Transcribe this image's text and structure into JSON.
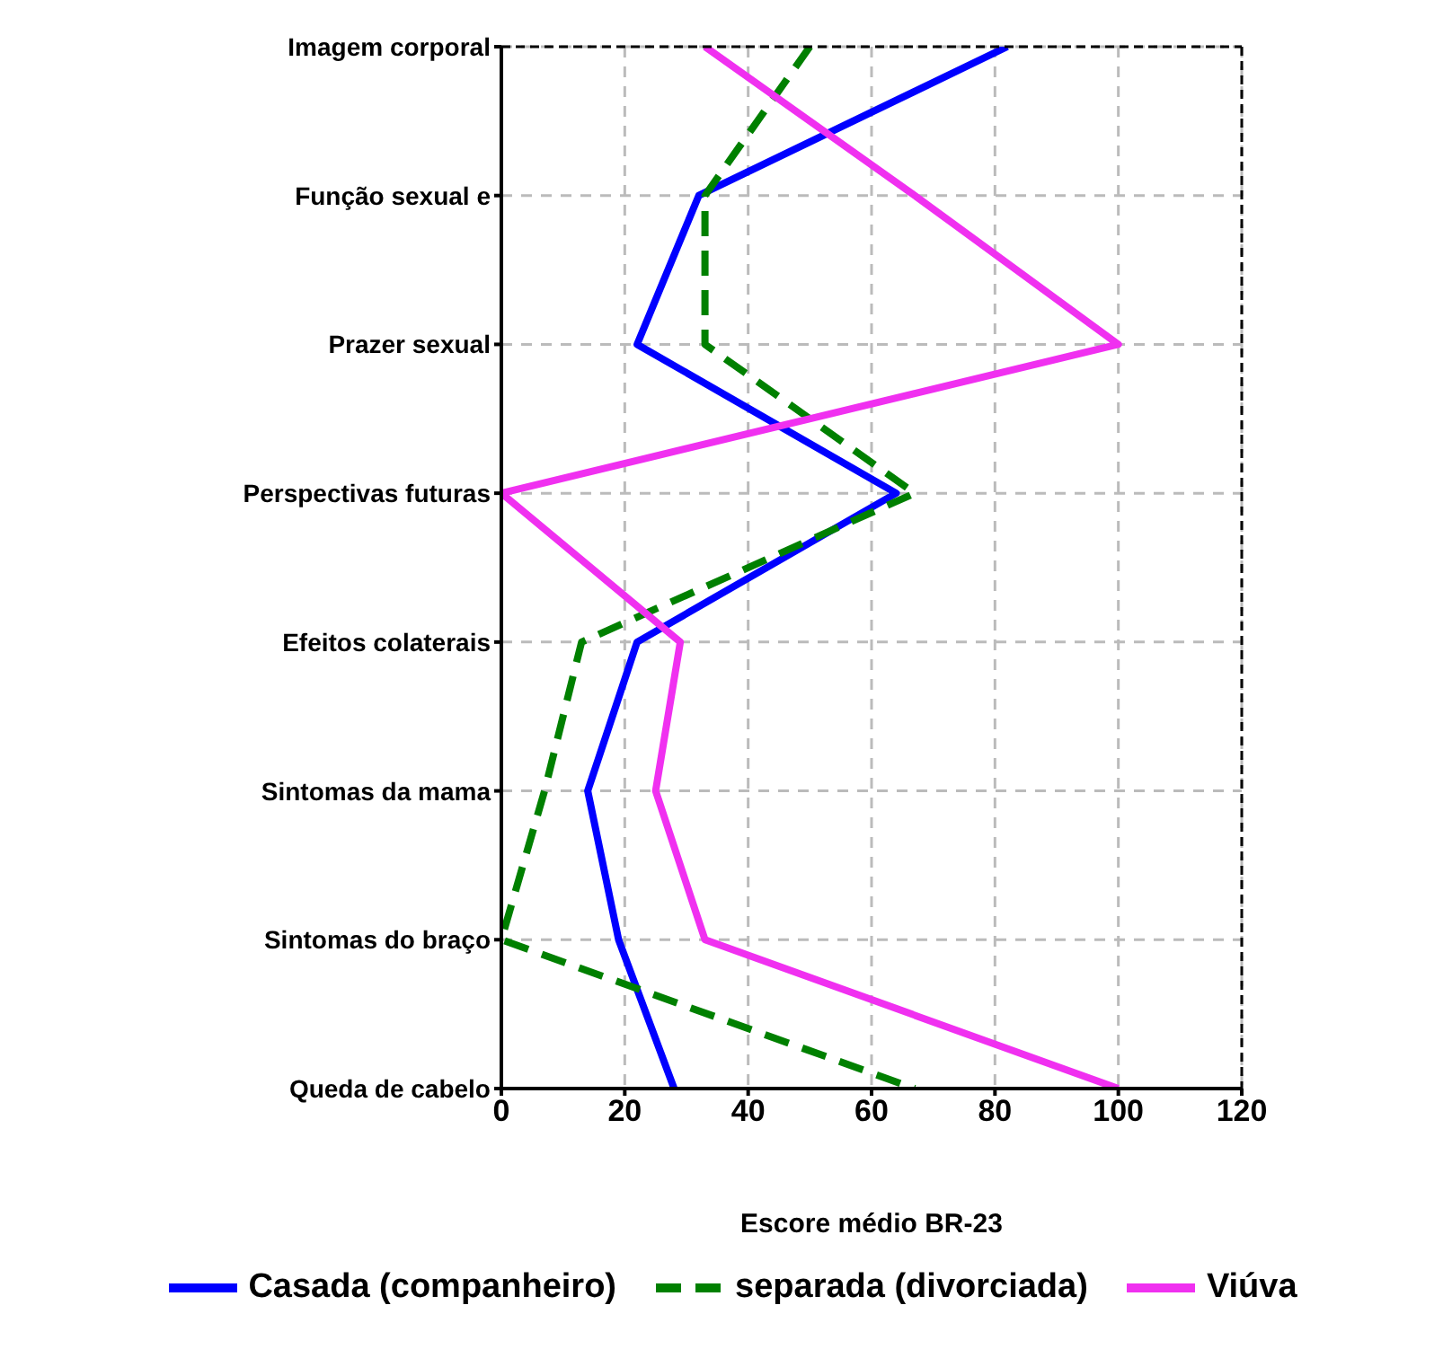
{
  "chart_data": {
    "type": "line",
    "orientation": "horizontal",
    "xlabel": "Escore médio BR-23",
    "categories": [
      "Imagem corporal",
      "Função sexual e",
      "Prazer sexual",
      "Perspectivas futuras",
      "Efeitos colaterais",
      "Sintomas da mama",
      "Sintomas do braço",
      "Queda de cabelo"
    ],
    "series": [
      {
        "name": "Casada (companheiro)",
        "color": "#0000ff",
        "line_style": "solid",
        "values": [
          82,
          32,
          22,
          64,
          22,
          14,
          19,
          28
        ]
      },
      {
        "name": "separada (divorciada)",
        "color": "#008000",
        "line_style": "dashed",
        "values": [
          50,
          33,
          33,
          67,
          13,
          7,
          0,
          67
        ]
      },
      {
        "name": "Viúva",
        "color": "#f030f0",
        "line_style": "solid",
        "values": [
          33,
          67,
          100,
          0,
          29,
          25,
          33,
          100
        ]
      }
    ],
    "xlim": [
      0,
      120
    ],
    "xticks": [
      0,
      20,
      40,
      60,
      80,
      100,
      120
    ],
    "grid": true,
    "legend": "bottom",
    "marker": "none"
  }
}
